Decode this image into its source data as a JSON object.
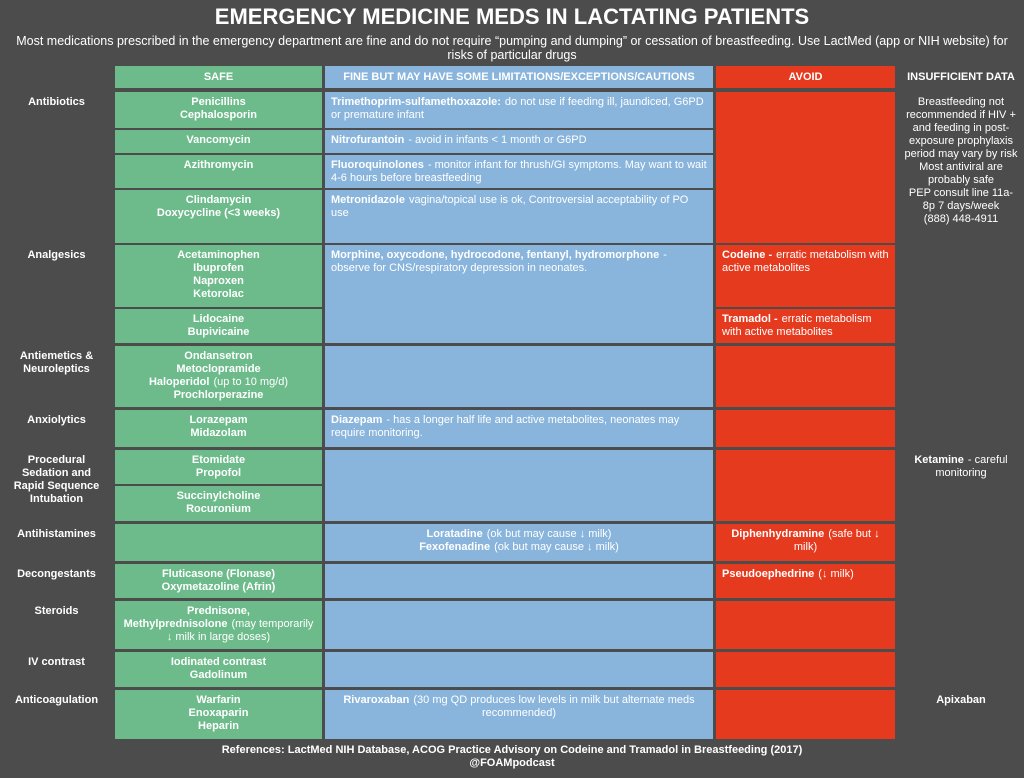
{
  "header": {
    "title": "EMERGENCY MEDICINE MEDS IN LACTATING PATIENTS",
    "subtitle": "Most medications prescribed in the emergency department are fine and do not require “pumping and dumping” or cessation of breastfeeding. Use LactMed (app or NIH website) for risks of particular drugs"
  },
  "columns": {
    "safe": "SAFE",
    "fine": "FINE BUT MAY HAVE SOME LIMITATIONS/EXCEPTIONS/CAUTIONS",
    "avoid": "AVOID",
    "insufficient": "INSUFFICIENT DATA"
  },
  "rows": [
    {
      "category": "Antibiotics",
      "safe": [
        [
          {
            "bold": "Penicillins"
          },
          {
            "bold": "Cephalosporin"
          }
        ],
        [
          {
            "bold": "Vancomycin"
          }
        ],
        [
          {
            "bold": "Azithromycin"
          }
        ],
        [
          {
            "bold": "Clindamycin"
          },
          {
            "bold": "Doxycycline (<3 weeks)"
          }
        ]
      ],
      "fine": [
        [
          {
            "bold": "Trimethoprim-sulfamethoxazole:",
            "text": "do not use if feeding ill, jaundiced, G6PD or premature infant"
          }
        ],
        [
          {
            "bold": "Nitrofurantoin",
            "text": "- avoid in infants < 1 month or G6PD"
          }
        ],
        [
          {
            "bold": "Fluoroquinolones",
            "text": "- monitor infant for thrush/GI symptoms. May want to wait 4-6 hours before breastfeeding"
          }
        ],
        [
          {
            "bold": "Metronidazole",
            "text": "vagina/topical use is ok, Controversial acceptability of PO use"
          }
        ]
      ],
      "avoid": [],
      "insufficient": [
        [
          {
            "text": "Breastfeeding not recommended if HIV + and feeding in post-exposure prophylaxis period may vary by risk"
          },
          {
            "text": "Most antiviral are probably safe"
          },
          {
            "text": "PEP consult  line 11a-8p 7 days/week"
          },
          {
            "text": "(888) 448-4911"
          }
        ]
      ]
    },
    {
      "category": "Analgesics",
      "safe": [
        [
          {
            "bold": "Acetaminophen"
          },
          {
            "bold": "Ibuprofen"
          },
          {
            "bold": "Naproxen"
          },
          {
            "bold": "Ketorolac"
          }
        ],
        [
          {
            "bold": "Lidocaine"
          },
          {
            "bold": "Bupivicaine"
          }
        ]
      ],
      "fine": [
        [
          {
            "bold": "Morphine, oxycodone, hydrocodone, fentanyl, hydromorphone",
            "text": "- observe for CNS/respiratory depression in neonates."
          }
        ]
      ],
      "avoid": [
        [
          {
            "bold": "Codeine -",
            "text": "erratic metabolism with active metabolites"
          }
        ],
        [
          {
            "bold": "Tramadol -",
            "text": "erratic metabolism with active metabolites"
          }
        ]
      ],
      "insufficient": []
    },
    {
      "category": "Antiemetics & Neuroleptics",
      "safe": [
        [
          {
            "bold": "Ondansetron"
          },
          {
            "bold": "Metoclopramide"
          },
          {
            "bold": "Haloperidol",
            "text": "(up to 10 mg/d)"
          },
          {
            "bold": "Prochlorperazine"
          }
        ]
      ],
      "fine": [],
      "avoid": [],
      "insufficient": []
    },
    {
      "category": "Anxiolytics",
      "safe": [
        [
          {
            "bold": "Lorazepam"
          },
          {
            "bold": "Midazolam"
          }
        ]
      ],
      "fine": [
        [
          {
            "bold": "Diazepam",
            "text": "- has a longer half life and active metabolites, neonates may require monitoring."
          }
        ]
      ],
      "avoid": [],
      "insufficient": []
    },
    {
      "category": "Procedural Sedation and Rapid Sequence Intubation",
      "safe": [
        [
          {
            "bold": "Etomidate"
          },
          {
            "bold": "Propofol"
          }
        ],
        [
          {
            "bold": "Succinylcholine"
          },
          {
            "bold": "Rocuronium"
          }
        ]
      ],
      "fine": [],
      "avoid": [],
      "insufficient": [
        [
          {
            "bold": "Ketamine",
            "text": "- careful monitoring"
          }
        ]
      ]
    },
    {
      "category": "Antihistamines",
      "safe": [],
      "fine": [
        [
          {
            "bold": "Loratadine",
            "text": "(ok but may cause ↓ milk)"
          },
          {
            "bold": "Fexofenadine",
            "text": "(ok but may cause ↓ milk)"
          }
        ]
      ],
      "avoid": [
        [
          {
            "bold": "Diphenhydramine",
            "text": "(safe but ↓ milk)"
          }
        ]
      ],
      "insufficient": []
    },
    {
      "category": "Decongestants",
      "safe": [
        [
          {
            "bold": "Fluticasone (Flonase)"
          },
          {
            "bold": "Oxymetazoline (Afrin)"
          }
        ]
      ],
      "fine": [],
      "avoid": [
        [
          {
            "bold": "Pseudoephedrine",
            "text": "(↓ milk)"
          }
        ]
      ],
      "insufficient": []
    },
    {
      "category": "Steroids",
      "safe": [
        [
          {
            "bold": "Prednisone, Methylprednisolone",
            "text": "(may temporarily ↓ milk in large doses)"
          }
        ]
      ],
      "fine": [],
      "avoid": [],
      "insufficient": []
    },
    {
      "category": "IV contrast",
      "safe": [
        [
          {
            "bold": "Iodinated contrast"
          },
          {
            "bold": "Gadolinum"
          }
        ]
      ],
      "fine": [],
      "avoid": [],
      "insufficient": []
    },
    {
      "category": "Anticoagulation",
      "safe": [
        [
          {
            "bold": "Warfarin"
          },
          {
            "bold": "Enoxaparin"
          },
          {
            "bold": "Heparin"
          }
        ]
      ],
      "fine": [
        [
          {
            "bold": "Rivaroxaban",
            "text": "(30 mg QD produces low levels in milk but alternate meds recommended)"
          }
        ]
      ],
      "avoid": [],
      "insufficient": [
        [
          {
            "bold": "Apixaban"
          }
        ]
      ]
    }
  ],
  "footer": {
    "references": "References: LactMed NIH Database, ACOG Practice Advisory on Codeine and Tramadol in Breastfeeding (2017)",
    "handle": "@FOAMpodcast"
  }
}
